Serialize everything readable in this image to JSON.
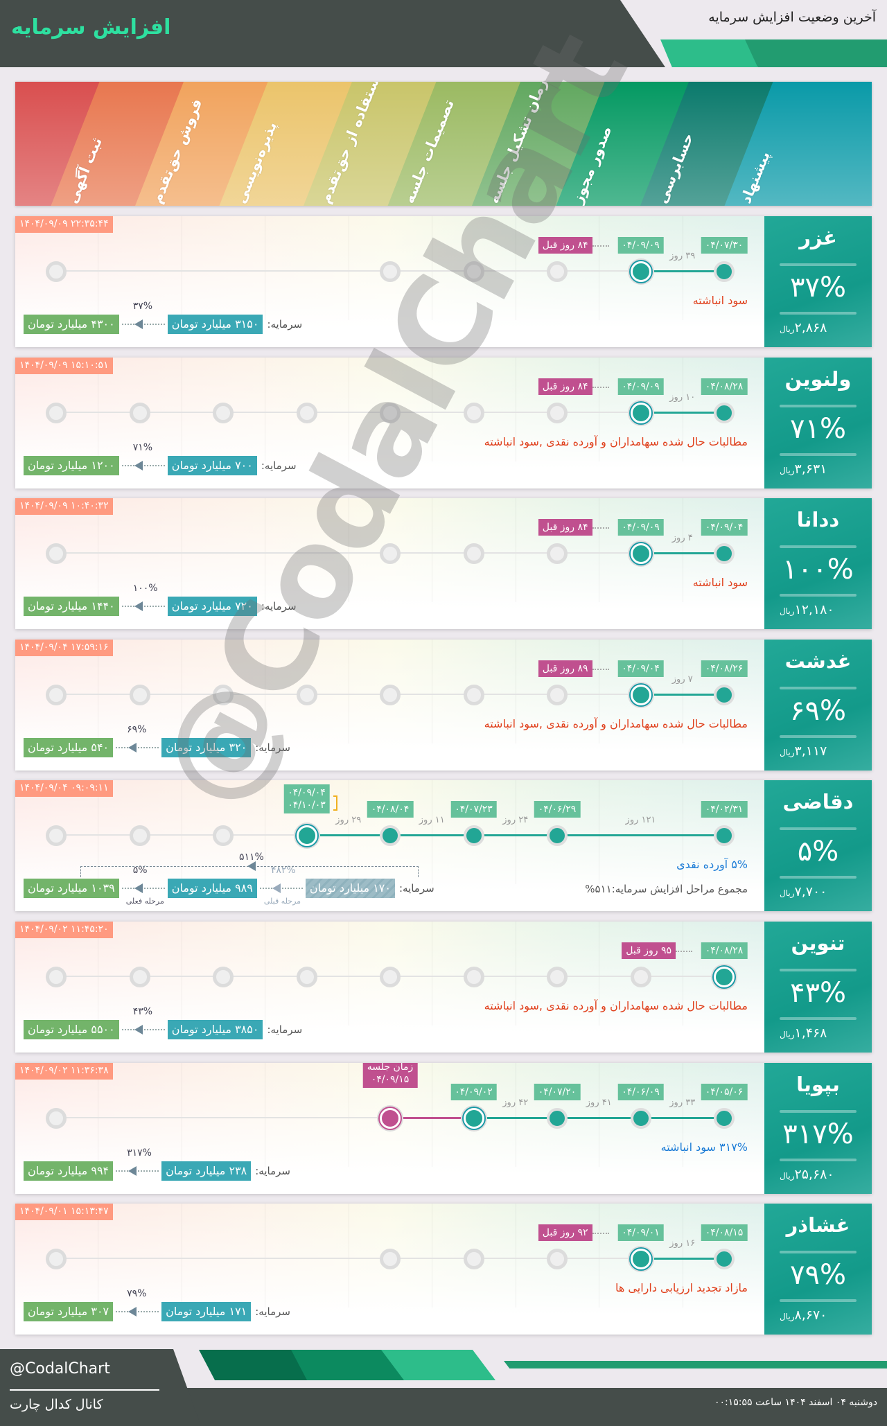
{
  "header": {
    "title": "افزایش سرمایه",
    "subtitle": "آخرین وضعیت افزایش سرمایه"
  },
  "stages": [
    "ثبت آگهی",
    "فروش حق‌تقدم",
    "پذیره‌نویسی",
    "استفاده از حق‌تقدم",
    "تصمیمات جلسه",
    "زمان تشکیل جلسه",
    "صدور مجوز",
    "حسابرسی",
    "پیشنهاد"
  ],
  "colors": {
    "bands": [
      "#d94f4f",
      "#e8774f",
      "#f1a35d",
      "#ebc46b",
      "#c9c56a",
      "#9bba62",
      "#62a860",
      "#049962",
      "#0b7a6c",
      "#0a9aa8"
    ],
    "done": "#22a695",
    "meeting": "#c0508f",
    "date_label": "#66c19b",
    "timestamp": "#ff9a80",
    "desc_red": "#e0401c",
    "desc_blue": "#1a7bd6"
  },
  "watermark": "@CodalChart",
  "cards": [
    {
      "name": "غزر",
      "pct": "۳۷%",
      "price": "۲,۸۶۸",
      "currency": "ریال",
      "timestamp": "۱۴۰۴/۰۹/۰۹ ۲۲:۳۵:۴۴",
      "nodes": [
        "pending",
        "hidden",
        "hidden",
        "hidden",
        "pending",
        "pending",
        "pending",
        "current",
        "done"
      ],
      "dates": [
        null,
        null,
        null,
        null,
        null,
        null,
        null,
        "۰۴/۰۹/۰۹",
        "۰۴/۰۷/۳۰"
      ],
      "days": [
        null,
        null,
        null,
        null,
        null,
        null,
        null,
        "۳۹ روز",
        null
      ],
      "badge": "۸۴ روز قبل",
      "desc": "سود انباشته",
      "desc_color": "red",
      "capital": {
        "label": "سرمایه:",
        "from": "۳۱۵۰ میلیارد تومان",
        "to": "۴۳۰۰ میلیارد تومان",
        "pct": "۳۷%"
      }
    },
    {
      "name": "ولنوین",
      "pct": "۷۱%",
      "price": "۳,۶۳۱",
      "currency": "ریال",
      "timestamp": "۱۴۰۴/۰۹/۰۹ ۱۵:۱۰:۵۱",
      "nodes": [
        "pending",
        "pending",
        "pending",
        "pending",
        "pending",
        "pending",
        "pending",
        "current",
        "done"
      ],
      "dates": [
        null,
        null,
        null,
        null,
        null,
        null,
        null,
        "۰۴/۰۹/۰۹",
        "۰۴/۰۸/۲۸"
      ],
      "days": [
        null,
        null,
        null,
        null,
        null,
        null,
        null,
        "۱۰ روز",
        null
      ],
      "badge": "۸۴ روز قبل",
      "desc": "مطالبات حال شده سهامداران و آورده نقدی ,سود انباشته",
      "desc_color": "red",
      "capital": {
        "label": "سرمایه:",
        "from": "۷۰۰ میلیارد تومان",
        "to": "۱۲۰۰ میلیارد تومان",
        "pct": "۷۱%"
      }
    },
    {
      "name": "ددانا",
      "pct": "۱۰۰%",
      "price": "۱۲,۱۸۰",
      "currency": "ریال",
      "timestamp": "۱۴۰۴/۰۹/۰۹ ۱۰:۴۰:۳۲",
      "nodes": [
        "pending",
        "hidden",
        "hidden",
        "hidden",
        "pending",
        "pending",
        "pending",
        "current",
        "done"
      ],
      "dates": [
        null,
        null,
        null,
        null,
        null,
        null,
        null,
        "۰۴/۰۹/۰۹",
        "۰۴/۰۹/۰۴"
      ],
      "days": [
        null,
        null,
        null,
        null,
        null,
        null,
        null,
        "۴ روز",
        null
      ],
      "badge": "۸۴ روز قبل",
      "desc": "سود انباشته",
      "desc_color": "red",
      "capital": {
        "label": "سرمایه:",
        "from": "۷۲۰ میلیارد تومان",
        "to": "۱۴۴۰ میلیارد تومان",
        "pct": "۱۰۰%"
      }
    },
    {
      "name": "غدشت",
      "pct": "۶۹%",
      "price": "۳,۱۱۷",
      "currency": "ریال",
      "timestamp": "۱۴۰۴/۰۹/۰۴ ۱۷:۵۹:۱۶",
      "nodes": [
        "pending",
        "pending",
        "pending",
        "pending",
        "pending",
        "pending",
        "pending",
        "current",
        "done"
      ],
      "dates": [
        null,
        null,
        null,
        null,
        null,
        null,
        null,
        "۰۴/۰۹/۰۴",
        "۰۴/۰۸/۲۶"
      ],
      "days": [
        null,
        null,
        null,
        null,
        null,
        null,
        null,
        "۷ روز",
        null
      ],
      "badge": "۸۹ روز قبل",
      "desc": "مطالبات حال شده سهامداران و آورده نقدی ,سود انباشته",
      "desc_color": "red",
      "capital": {
        "label": "سرمایه:",
        "from": "۳۲۰ میلیارد تومان",
        "to": "۵۴۰ میلیارد تومان",
        "pct": "۶۹%"
      }
    },
    {
      "name": "دقاضی",
      "pct": "۵%",
      "price": "۷,۷۰۰",
      "currency": "ریال",
      "timestamp": "۱۴۰۴/۰۹/۰۴ ۰۹:۰۹:۱۱",
      "nodes": [
        "pending",
        "pending",
        "pending",
        "current",
        "done",
        "done",
        "done",
        "hidden",
        "done"
      ],
      "dates": [
        null,
        null,
        null,
        "۰۴/۰۹/۰۴\n۰۴/۱۰/۰۳",
        "۰۴/۰۸/۰۴",
        "۰۴/۰۷/۲۳",
        "۰۴/۰۶/۲۹",
        null,
        "۰۴/۰۲/۳۱"
      ],
      "days": [
        null,
        null,
        null,
        "۲۹ روز",
        "۱۱ روز",
        "۲۴ روز",
        "۱۲۱ روز",
        null,
        null
      ],
      "badge": null,
      "desc": "۵% آورده نقدی",
      "desc_color": "blue",
      "summary": "مجموع مراحل افزایش سرمایه:۵۱۱%",
      "capital": {
        "label": "سرمایه:",
        "from": "۱۷۰ میلیارد تومان",
        "mid": "۹۸۹ میلیارد تومان",
        "to": "۱۰۳۹ میلیارد تومان",
        "pct": "۵%",
        "prev_pct": "۴۸۲%",
        "total_pct": "۵۱۱%",
        "current_stage": "مرحله فعلی",
        "prev_stage": "مرحله قبلی"
      }
    },
    {
      "name": "تنوین",
      "pct": "۴۳%",
      "price": "۱,۴۶۸",
      "currency": "ریال",
      "timestamp": "۱۴۰۴/۰۹/۰۲ ۱۱:۴۵:۲۰",
      "nodes": [
        "pending",
        "pending",
        "pending",
        "pending",
        "pending",
        "pending",
        "pending",
        "pending",
        "current"
      ],
      "dates": [
        null,
        null,
        null,
        null,
        null,
        null,
        null,
        null,
        "۰۴/۰۸/۲۸"
      ],
      "days": [
        null,
        null,
        null,
        null,
        null,
        null,
        null,
        null,
        null
      ],
      "badge": "۹۵ روز قبل",
      "desc": "مطالبات حال شده سهامداران و آورده نقدی ,سود انباشته",
      "desc_color": "red",
      "capital": {
        "label": "سرمایه:",
        "from": "۳۸۵۰ میلیارد تومان",
        "to": "۵۵۰۰ میلیارد تومان",
        "pct": "۴۳%"
      }
    },
    {
      "name": "بپویا",
      "pct": "۳۱۷%",
      "price": "۲۵,۶۸۰",
      "currency": "ریال",
      "timestamp": "۱۴۰۴/۰۹/۰۲ ۱۱:۳۶:۳۸",
      "nodes": [
        "pending",
        "hidden",
        "hidden",
        "hidden",
        "meeting",
        "current",
        "done",
        "done",
        "done"
      ],
      "dates": [
        null,
        null,
        null,
        null,
        "زمان جلسه\n۰۴/۰۹/۱۵",
        "۰۴/۰۹/۰۲",
        "۰۴/۰۷/۲۰",
        "۰۴/۰۶/۰۹",
        "۰۴/۰۵/۰۶"
      ],
      "days": [
        null,
        null,
        null,
        null,
        null,
        "۴۲ روز",
        "۴۱ روز",
        "۳۳ روز",
        null
      ],
      "badge": null,
      "desc": "۳۱۷% سود انباشته",
      "desc_color": "blue",
      "capital": {
        "label": "سرمایه:",
        "from": "۲۳۸ میلیارد تومان",
        "to": "۹۹۴ میلیارد تومان",
        "pct": "۳۱۷%"
      }
    },
    {
      "name": "غشاذر",
      "pct": "۷۹%",
      "price": "۸,۶۷۰",
      "currency": "ریال",
      "timestamp": "۱۴۰۴/۰۹/۰۱ ۱۵:۱۳:۴۷",
      "nodes": [
        "pending",
        "hidden",
        "hidden",
        "hidden",
        "pending",
        "pending",
        "pending",
        "current",
        "done"
      ],
      "dates": [
        null,
        null,
        null,
        null,
        null,
        null,
        null,
        "۰۴/۰۹/۰۱",
        "۰۴/۰۸/۱۵"
      ],
      "days": [
        null,
        null,
        null,
        null,
        null,
        null,
        null,
        "۱۶ روز",
        null
      ],
      "badge": "۹۲ روز قبل",
      "desc": "مازاد تجدید ارزیابی دارایی ها",
      "desc_color": "red",
      "capital": {
        "label": "سرمایه:",
        "from": "۱۷۱ میلیارد تومان",
        "to": "۳۰۷ میلیارد تومان",
        "pct": "۷۹%"
      }
    }
  ],
  "footer": {
    "handle": "@CodalChart",
    "channel": "کانال کدال چارت",
    "date": "دوشنبه ۰۴ اسفند ۱۴۰۴ ساعت ۰۰:۱۵:۵۵"
  }
}
